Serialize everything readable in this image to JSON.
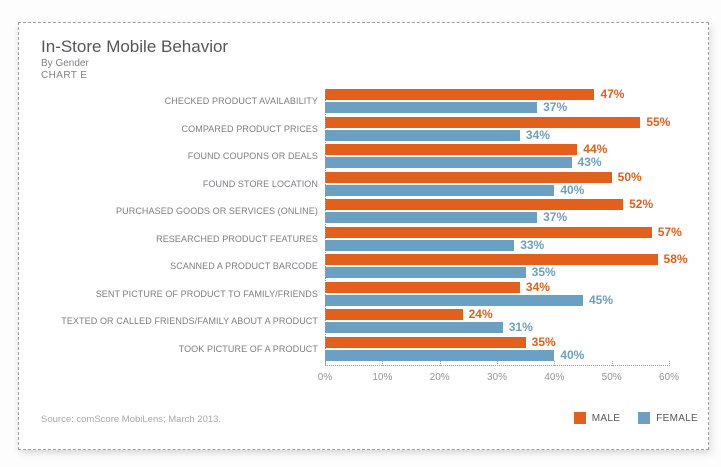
{
  "header": {
    "title": "In-Store Mobile Behavior",
    "subtitle": "By Gender",
    "chart_label": "CHART E"
  },
  "chart_data": {
    "type": "bar",
    "orientation": "horizontal",
    "title": "In-Store Mobile Behavior",
    "subtitle": "By Gender",
    "categories": [
      "CHECKED PRODUCT AVAILABILITY",
      "COMPARED PRODUCT PRICES",
      "FOUND COUPONS OR DEALS",
      "FOUND STORE LOCATION",
      "PURCHASED GOODS OR SERVICES (ONLINE)",
      "RESEARCHED PRODUCT FEATURES",
      "SCANNED A PRODUCT BARCODE",
      "SENT PICTURE OF PRODUCT TO FAMILY/FRIENDS",
      "TEXTED OR CALLED FRIENDS/FAMILY ABOUT A PRODUCT",
      "TOOK PICTURE OF A PRODUCT"
    ],
    "series": [
      {
        "name": "MALE",
        "color": "#E2601C",
        "values": [
          47,
          55,
          44,
          50,
          52,
          57,
          58,
          34,
          24,
          35
        ]
      },
      {
        "name": "FEMALE",
        "color": "#6CA0C2",
        "values": [
          37,
          34,
          43,
          40,
          37,
          33,
          35,
          45,
          31,
          40
        ]
      }
    ],
    "value_suffix": "%",
    "xlim": [
      0,
      60
    ],
    "x_ticks": [
      "0%",
      "10%",
      "20%",
      "30%",
      "40%",
      "50%",
      "60%"
    ],
    "grid": false,
    "legend_position": "bottom-right"
  },
  "footer": {
    "source": "Source: comScore MobiLens; March 2013."
  },
  "colors": {
    "title_text": "#58595B",
    "category_text": "#7C7E82",
    "axis_text": "#939598",
    "card_border": "#9DA0A3"
  }
}
